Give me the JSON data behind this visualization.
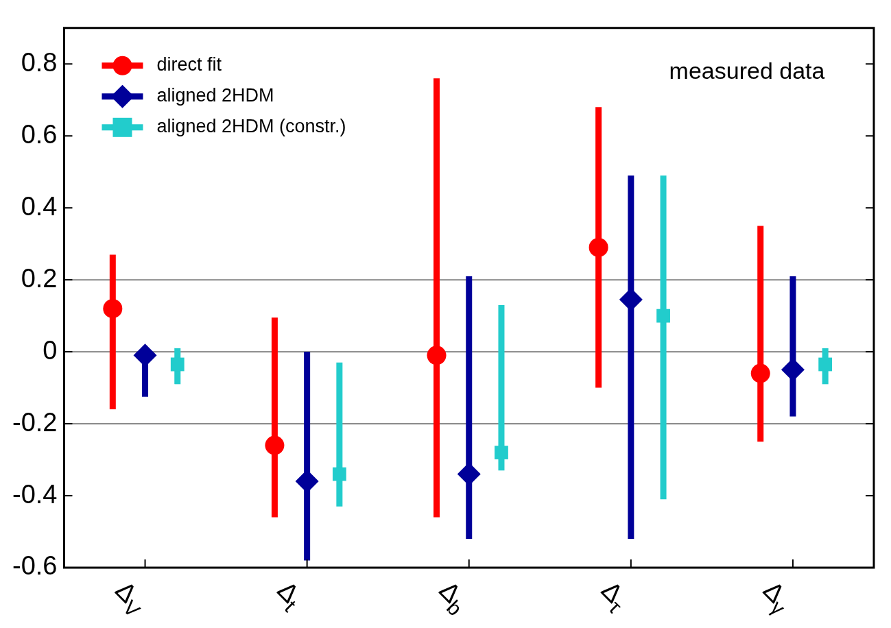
{
  "chart_data": {
    "type": "scatter",
    "categories": [
      "Δ$_{V}$",
      "Δ$_{t}$",
      "Δ$_{b}$",
      "Δ$_{τ}$",
      "Δ$_{γ}$"
    ],
    "series": [
      {
        "name": "direct fit",
        "color": "#ff0000",
        "marker": "circle",
        "values": [
          0.12,
          -0.26,
          -0.01,
          0.29,
          -0.06
        ],
        "errors": [
          [
            -0.16,
            0.27
          ],
          [
            -0.46,
            0.095
          ],
          [
            -0.46,
            0.76
          ],
          [
            -0.1,
            0.68
          ],
          [
            -0.25,
            0.35
          ]
        ]
      },
      {
        "name": "aligned 2HDM",
        "color": "#000099",
        "marker": "diamond",
        "values": [
          -0.01,
          -0.36,
          -0.34,
          0.145,
          -0.05
        ],
        "errors": [
          [
            -0.125,
            -0.01
          ],
          [
            -0.58,
            0.0
          ],
          [
            -0.52,
            0.21
          ],
          [
            -0.52,
            0.49
          ],
          [
            -0.18,
            0.21
          ]
        ]
      },
      {
        "name": "aligned 2HDM (constr.)",
        "color": "#22cccc",
        "marker": "square",
        "values": [
          -0.035,
          -0.34,
          -0.28,
          0.1,
          -0.035
        ],
        "errors": [
          [
            -0.09,
            0.01
          ],
          [
            -0.43,
            -0.03
          ],
          [
            -0.33,
            0.13
          ],
          [
            -0.41,
            0.49
          ],
          [
            -0.09,
            0.01
          ]
        ]
      }
    ],
    "ylim": [
      -0.6,
      0.9
    ],
    "yticks": [
      -0.6,
      -0.4,
      -0.2,
      0,
      0.2,
      0.4,
      0.6,
      0.8
    ],
    "grid": false,
    "legend": "top left",
    "ref_lines": [
      {
        "axis": "y",
        "value": 0.2,
        "color": "#000000"
      },
      {
        "axis": "y",
        "value": 0,
        "color": "#000000"
      },
      {
        "axis": "y",
        "value": -0.2,
        "color": "#000000"
      }
    ],
    "annotations": [
      "measured data"
    ]
  }
}
